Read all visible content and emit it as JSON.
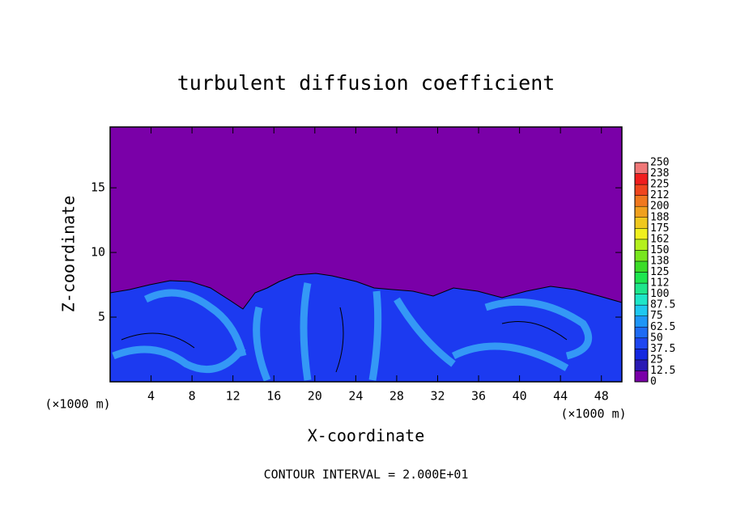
{
  "chart_data": {
    "type": "contour",
    "title": "turbulent diffusion coefficient",
    "x_label": "X-coordinate",
    "y_label": "Z-coordinate",
    "x_unit_left": "(×1000 m)",
    "x_unit_right": "(×1000 m)",
    "note": "CONTOUR INTERVAL = 2.000E+01",
    "xlim": [
      0,
      50
    ],
    "ylim": [
      0,
      19.7
    ],
    "xticks": [
      4,
      8,
      12,
      16,
      20,
      24,
      28,
      32,
      36,
      40,
      44,
      48
    ],
    "yticks": [
      5,
      10,
      15
    ],
    "colorbar": {
      "lim": [
        0,
        250
      ],
      "ticks": [
        0,
        12.5,
        25,
        37.5,
        50,
        62.5,
        75,
        87.5,
        100,
        {
          "value": 112.5,
          "label": "112"
        },
        125,
        {
          "value": 137.5,
          "label": "138"
        },
        150,
        {
          "value": 162.5,
          "label": "162"
        },
        175,
        {
          "value": 187.5,
          "label": "188"
        },
        200,
        {
          "value": 212.5,
          "label": "212"
        },
        225,
        {
          "value": 237.5,
          "label": "238"
        },
        250
      ],
      "colors": [
        "#7a00a8",
        "#2a1ab4",
        "#1428e0",
        "#1e46f0",
        "#1e6cf4",
        "#1e96f8",
        "#1ec8f0",
        "#1ee6c8",
        "#1ee68c",
        "#1ee650",
        "#3cdc28",
        "#78e61e",
        "#b4f01e",
        "#f0f01e",
        "#f0c81e",
        "#f0a01e",
        "#f0781e",
        "#f0461e",
        "#f01e1e",
        "#f07878"
      ]
    }
  }
}
